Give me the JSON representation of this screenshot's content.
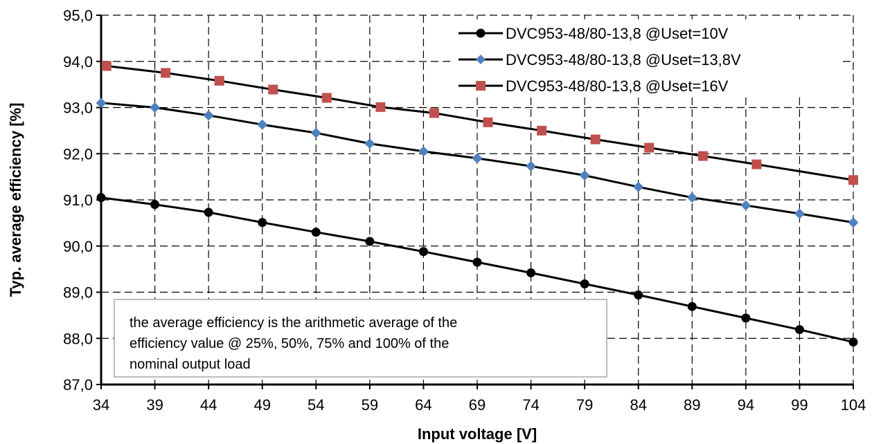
{
  "chart_data": {
    "type": "line",
    "xlabel": "Input voltage [V]",
    "ylabel": "Typ. average efficiency [%]",
    "xlim": [
      34,
      104
    ],
    "ylim": [
      87.0,
      95.0
    ],
    "x_ticks": [
      "34",
      "39",
      "44",
      "49",
      "54",
      "59",
      "64",
      "69",
      "74",
      "79",
      "84",
      "89",
      "94",
      "99",
      "104"
    ],
    "y_ticks": [
      "87,0",
      "88,0",
      "89,0",
      "90,0",
      "91,0",
      "92,0",
      "93,0",
      "94,0",
      "95,0"
    ],
    "grid": true,
    "legend_position": "top-right",
    "series": [
      {
        "name": "DVC953-48/80-13,8 @Uset=10V",
        "color": "#000000",
        "marker": "circle",
        "x": [
          34,
          39,
          44,
          49,
          54,
          59,
          64,
          69,
          74,
          79,
          84,
          89,
          94,
          99,
          104
        ],
        "y": [
          91.05,
          90.9,
          90.73,
          90.51,
          90.3,
          90.1,
          89.88,
          89.65,
          89.42,
          89.18,
          88.94,
          88.69,
          88.44,
          88.19,
          87.92
        ]
      },
      {
        "name": "DVC953-48/80-13,8 @Uset=13,8V",
        "color": "#4F81BD",
        "marker": "diamond",
        "x": [
          34,
          39,
          44,
          49,
          54,
          59,
          64,
          69,
          74,
          79,
          84,
          89,
          94,
          99,
          104
        ],
        "y": [
          93.1,
          93.0,
          92.83,
          92.63,
          92.45,
          92.22,
          92.05,
          91.9,
          91.73,
          91.53,
          91.28,
          91.05,
          90.88,
          90.7,
          90.51
        ]
      },
      {
        "name": "DVC953-48/80-13,8 @Uset=16V",
        "color": "#C0504D",
        "marker": "square",
        "x": [
          34.5,
          40,
          45,
          50,
          55,
          60,
          65,
          70,
          75,
          80,
          85,
          90,
          95,
          104
        ],
        "y": [
          93.9,
          93.75,
          93.58,
          93.39,
          93.21,
          93.01,
          92.88,
          92.68,
          92.5,
          92.31,
          92.13,
          91.95,
          91.77,
          91.43
        ]
      }
    ],
    "annotation": [
      "the average efficiency is the arithmetic average of the",
      "efficiency value @ 25%, 50%, 75% and 100% of the",
      "nominal output load"
    ]
  }
}
